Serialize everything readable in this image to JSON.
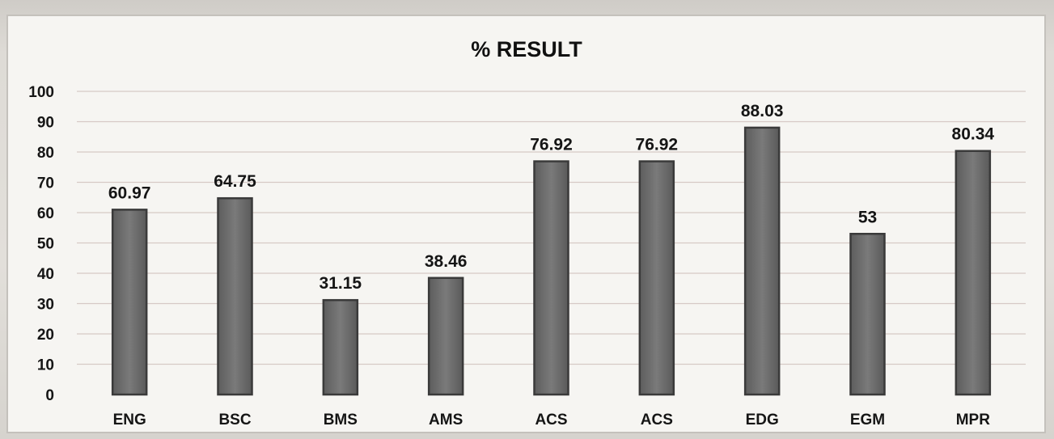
{
  "chart_data": {
    "type": "bar",
    "title": "% RESULT",
    "xlabel": "",
    "ylabel": "",
    "ylim": [
      0,
      100
    ],
    "yticks": [
      "0",
      "10",
      "20",
      "30",
      "40",
      "50",
      "60",
      "70",
      "80",
      "90",
      "100"
    ],
    "grid": true,
    "categories": [
      "ENG",
      "BSC",
      "BMS",
      "AMS",
      "ACS",
      "ACS",
      "EDG",
      "EGM",
      "MPR"
    ],
    "values": [
      60.97,
      64.75,
      31.15,
      38.46,
      76.92,
      76.92,
      88.03,
      53,
      80.34
    ],
    "data_labels": [
      "60.97",
      "64.75",
      "31.15",
      "38.46",
      "76.92",
      "76.92",
      "88.03",
      "53",
      "80.34"
    ],
    "bar_color": "#6e6e6e"
  }
}
